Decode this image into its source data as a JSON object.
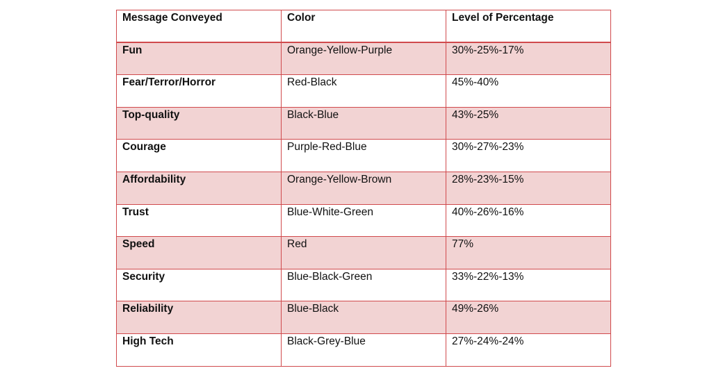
{
  "table": {
    "header": [
      "Message  Conveyed",
      "Color",
      "Level of Percentage"
    ],
    "rows": [
      [
        "Fun",
        "Orange-Yellow-Purple",
        "30%-25%-17%"
      ],
      [
        "Fear/Terror/Horror",
        "Red-Black",
        "45%-40%"
      ],
      [
        "Top-quality",
        "Black-Blue",
        "43%-25%"
      ],
      [
        "Courage",
        "Purple-Red-Blue",
        "30%-27%-23%"
      ],
      [
        "Affordability",
        "Orange-Yellow-Brown",
        "28%-23%-15%"
      ],
      [
        "Trust",
        "Blue-White-Green",
        "40%-26%-16%"
      ],
      [
        "Speed",
        "Red",
        "77%"
      ],
      [
        "Security",
        "Blue-Black-Green",
        "33%-22%-13%"
      ],
      [
        "Reliability",
        "Blue-Black",
        "49%-26%"
      ],
      [
        "High Tech",
        "Black-Grey-Blue",
        "27%-24%-24%"
      ]
    ]
  }
}
